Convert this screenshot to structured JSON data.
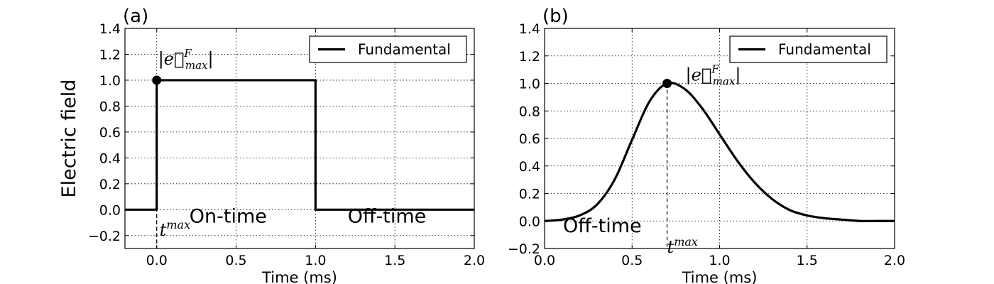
{
  "chart_data": [
    {
      "type": "line",
      "panel_label": "(a)",
      "xlabel": "Time (ms)",
      "ylabel": "Electric field",
      "xlim": [
        -0.2,
        2.0
      ],
      "ylim": [
        -0.3,
        1.4
      ],
      "xticks": [
        0.0,
        0.5,
        1.0,
        1.5,
        2.0
      ],
      "xtick_labels": [
        "0.0",
        "0.5",
        "1.0",
        "1.5",
        "2.0"
      ],
      "yticks": [
        -0.2,
        0.0,
        0.2,
        0.4,
        0.6,
        0.8,
        1.0,
        1.2,
        1.4
      ],
      "ytick_labels": [
        "−0.2",
        "0.0",
        "0.2",
        "0.4",
        "0.6",
        "0.8",
        "1.0",
        "1.2",
        "1.4"
      ],
      "grid": true,
      "legend_position": "top-right",
      "series": [
        {
          "name": "Fundamental",
          "color": "#000000",
          "x": [
            -0.2,
            0.0,
            0.0,
            1.0,
            1.0,
            2.0
          ],
          "y": [
            0.0,
            0.0,
            1.0,
            1.0,
            0.0,
            0.0
          ]
        }
      ],
      "marker": {
        "x": 0.0,
        "y": 1.0
      },
      "annotations": {
        "peak_label": "|e⃗",
        "peak_sup": "F",
        "peak_sub": "max",
        "peak_close": "|",
        "tmax_label": "t",
        "tmax_sup": "max",
        "on_time": "On-time",
        "off_time": "Off-time"
      }
    },
    {
      "type": "line",
      "panel_label": "(b)",
      "xlabel": "Time (ms)",
      "ylabel": "",
      "xlim": [
        0.0,
        2.0
      ],
      "ylim": [
        -0.2,
        1.4
      ],
      "xticks": [
        0.0,
        0.5,
        1.0,
        1.5,
        2.0
      ],
      "xtick_labels": [
        "0.0",
        "0.5",
        "1.0",
        "1.5",
        "2.0"
      ],
      "yticks": [
        -0.2,
        0.0,
        0.2,
        0.4,
        0.6,
        0.8,
        1.0,
        1.2,
        1.4
      ],
      "ytick_labels": [
        "−0.2",
        "0.0",
        "0.2",
        "0.4",
        "0.6",
        "0.8",
        "1.0",
        "1.2",
        "1.4"
      ],
      "grid": true,
      "legend_position": "top-right",
      "series": [
        {
          "name": "Fundamental",
          "color": "#000000",
          "x": [
            0.0,
            0.1,
            0.2,
            0.3,
            0.4,
            0.5,
            0.6,
            0.7,
            0.8,
            0.9,
            1.0,
            1.1,
            1.2,
            1.3,
            1.4,
            1.5,
            1.6,
            1.7,
            1.8,
            1.9,
            2.0
          ],
          "y": [
            0.0,
            0.01,
            0.04,
            0.12,
            0.3,
            0.59,
            0.87,
            1.0,
            0.96,
            0.82,
            0.63,
            0.44,
            0.28,
            0.16,
            0.08,
            0.04,
            0.02,
            0.01,
            0.0,
            0.0,
            0.0
          ]
        }
      ],
      "marker": {
        "x": 0.7,
        "y": 1.0
      },
      "annotations": {
        "peak_label": "|e⃗",
        "peak_sup": "F",
        "peak_sub": "max",
        "peak_close": "|",
        "tmax_label": "t",
        "tmax_sup": "max",
        "off_time": "Off-time"
      }
    }
  ]
}
